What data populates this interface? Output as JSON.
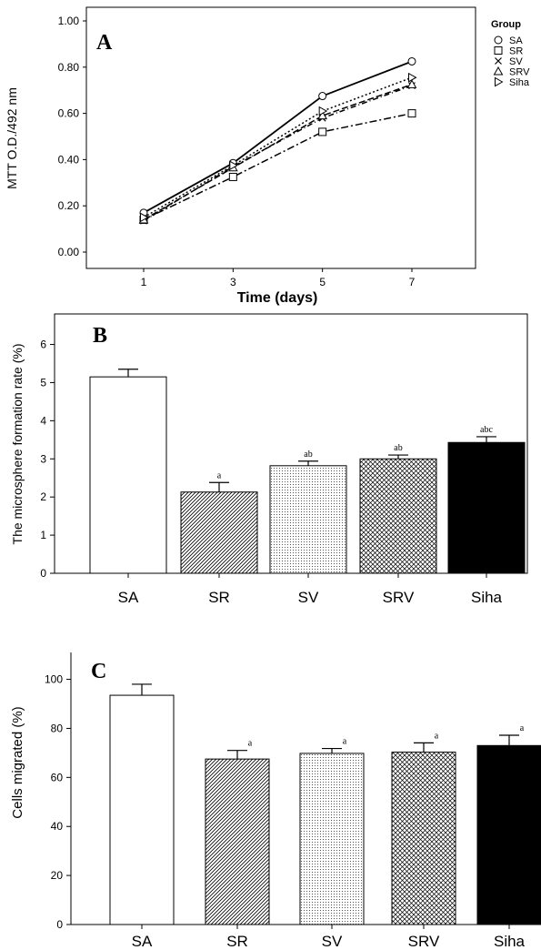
{
  "chart_data": [
    {
      "panel": "A",
      "type": "line",
      "xlabel": "Time (days)",
      "ylabel": "MTT O.D./492 nm",
      "x": [
        1,
        3,
        5,
        7
      ],
      "x_ticks": [
        "1",
        "3",
        "5",
        "7"
      ],
      "y_ticks": [
        "0.00",
        "0.20",
        "0.40",
        "0.60",
        "0.80",
        "1.00"
      ],
      "ylim": [
        0,
        1.0
      ],
      "legend_title": "Group",
      "legend_placement": "right",
      "series": [
        {
          "name": "SA",
          "marker": "circle",
          "dash": "solid",
          "values": [
            0.17,
            0.385,
            0.675,
            0.825
          ]
        },
        {
          "name": "SR",
          "marker": "square",
          "dash": "dashdot",
          "values": [
            0.14,
            0.325,
            0.52,
            0.6
          ]
        },
        {
          "name": "SV",
          "marker": "x",
          "dash": "dashdot2",
          "values": [
            0.135,
            0.37,
            0.58,
            0.72
          ]
        },
        {
          "name": "SRV",
          "marker": "triangle-up",
          "dash": "longdash",
          "values": [
            0.14,
            0.365,
            0.59,
            0.725
          ]
        },
        {
          "name": "Siha",
          "marker": "triangle-right",
          "dash": "dotted",
          "values": [
            0.15,
            0.375,
            0.61,
            0.755
          ]
        }
      ]
    },
    {
      "panel": "B",
      "type": "bar",
      "ylabel": "The microsphere formation rate (%)",
      "categories": [
        "SA",
        "SR",
        "SV",
        "SRV",
        "Siha"
      ],
      "values": [
        5.15,
        2.13,
        2.82,
        3.0,
        3.43
      ],
      "errors": [
        0.2,
        0.25,
        0.12,
        0.1,
        0.15
      ],
      "sig_labels": [
        "",
        "a",
        "ab",
        "ab",
        "abc"
      ],
      "fills": [
        "white",
        "diag-left",
        "dots",
        "crosshatch",
        "solid-black"
      ],
      "y_ticks": [
        "0",
        "1",
        "2",
        "3",
        "4",
        "5",
        "6"
      ],
      "ylim": [
        0,
        6.8
      ]
    },
    {
      "panel": "C",
      "type": "bar",
      "ylabel": "Cells migrated (%)",
      "categories": [
        "SA",
        "SR",
        "SV",
        "SRV",
        "Siha"
      ],
      "values": [
        93.5,
        67.5,
        69.8,
        70.3,
        73.0
      ],
      "errors": [
        4.5,
        3.5,
        2.0,
        3.8,
        4.2
      ],
      "sig_labels": [
        "",
        "a",
        "a",
        "a",
        "a"
      ],
      "fills": [
        "white",
        "diag-left",
        "dots",
        "crosshatch",
        "solid-black"
      ],
      "y_ticks": [
        "0",
        "20",
        "40",
        "60",
        "80",
        "100"
      ],
      "ylim": [
        0,
        108
      ]
    }
  ]
}
